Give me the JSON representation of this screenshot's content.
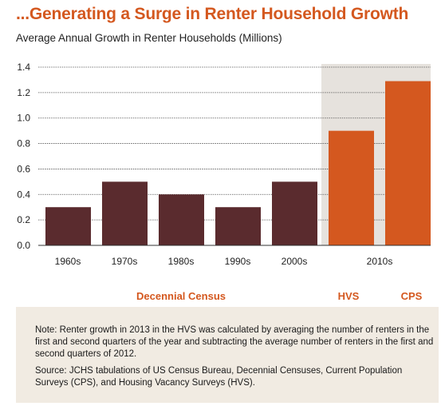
{
  "title": "...Generating a Surge in Renter Household Growth",
  "subtitle": "Average Annual Growth in Renter Households (Millions)",
  "colors": {
    "accent": "#d4581f",
    "census_bar": "#5a2b2e",
    "survey_bar": "#d4581f",
    "shade": "#e6e2dd",
    "notes_bg": "#f1ebe2"
  },
  "chart_data": {
    "type": "bar",
    "categories": [
      "1960s",
      "1970s",
      "1980s",
      "1990s",
      "2000s",
      "2010s",
      "2010s"
    ],
    "x_tick_labels": [
      "1960s",
      "1970s",
      "1980s",
      "1990s",
      "2000s",
      "2010s"
    ],
    "values": [
      0.3,
      0.5,
      0.4,
      0.3,
      0.5,
      0.9,
      1.29
    ],
    "bar_groups": [
      "Decennial Census",
      "Decennial Census",
      "Decennial Census",
      "Decennial Census",
      "Decennial Census",
      "HVS",
      "CPS"
    ],
    "group_labels": {
      "census": "Decennial Census",
      "hvs": "HVS",
      "cps": "CPS"
    },
    "ylim": [
      0,
      1.4
    ],
    "yticks": [
      "0.0",
      "0.2",
      "0.4",
      "0.6",
      "0.8",
      "1.0",
      "1.2",
      "1.4"
    ],
    "grid": true,
    "shaded_region": "2010s"
  },
  "notes": {
    "note": "Note: Renter growth in 2013 in the HVS was calculated by averaging the number of renters in the first and second quarters of the year and subtracting the average number of renters in the first and second quarters of 2012.",
    "source": "Source: JCHS tabulations of US Census Bureau, Decennial Censuses, Current Population Surveys (CPS), and Housing Vacancy Surveys (HVS)."
  }
}
